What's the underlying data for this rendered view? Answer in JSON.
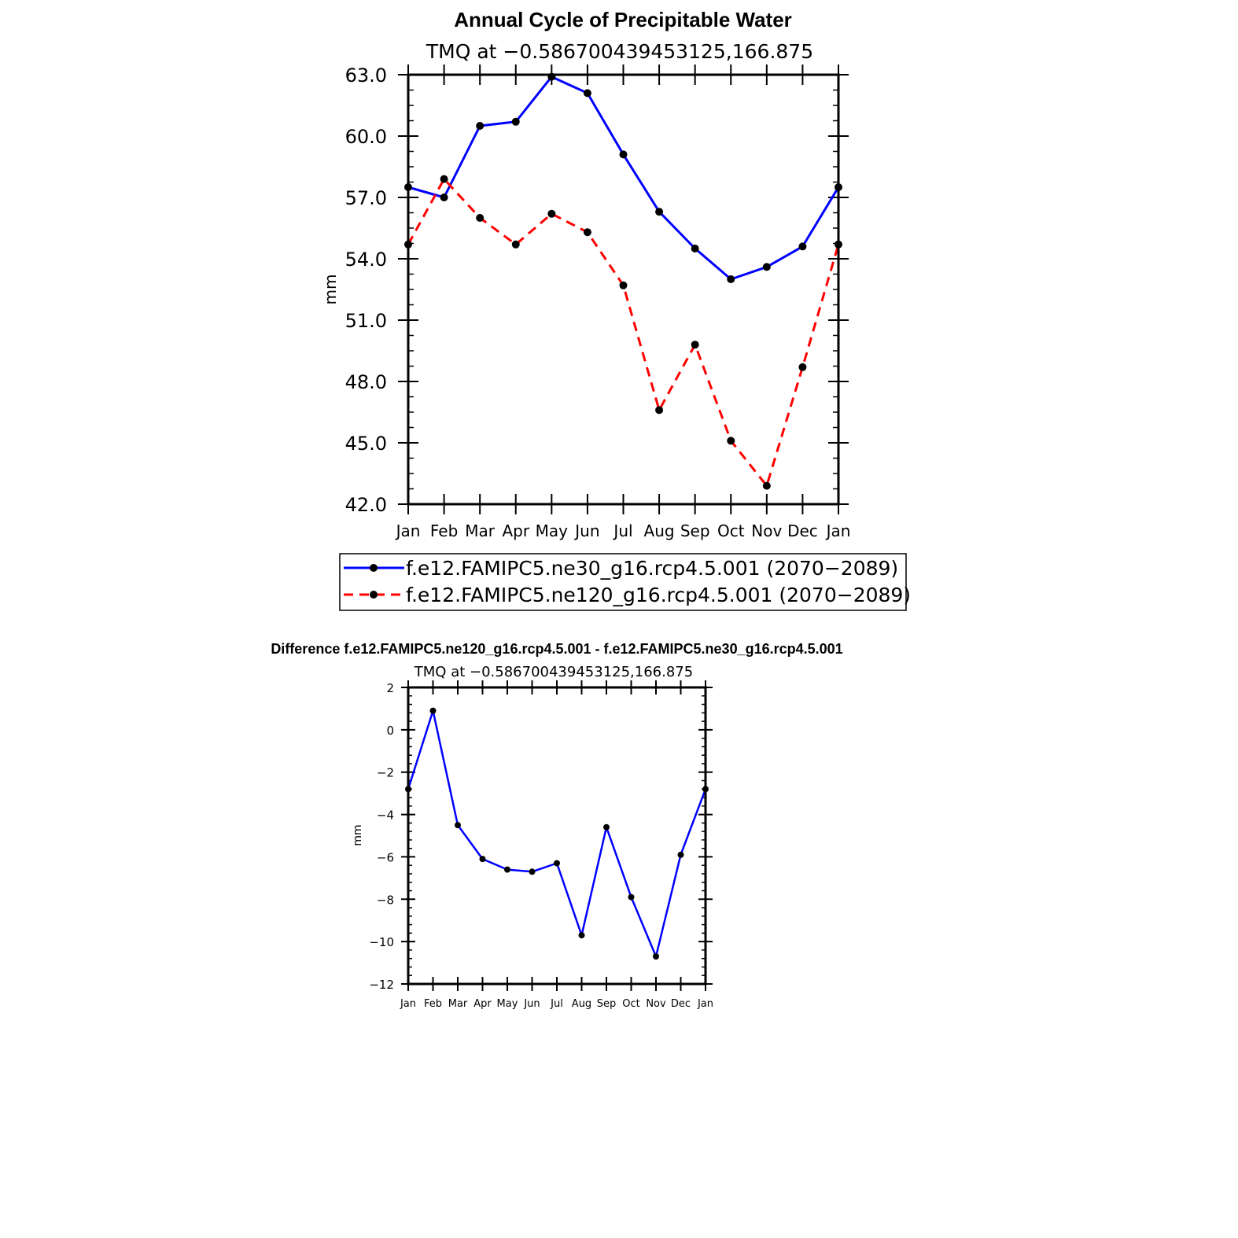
{
  "chart_data": [
    {
      "type": "line",
      "title": "Annual Cycle of Precipitable Water",
      "subtitle": "TMQ at −0.586700439453125,166.875",
      "xlabel": "",
      "ylabel": "mm",
      "categories": [
        "Jan",
        "Feb",
        "Mar",
        "Apr",
        "May",
        "Jun",
        "Jul",
        "Aug",
        "Sep",
        "Oct",
        "Nov",
        "Dec",
        "Jan"
      ],
      "ylim": [
        42.0,
        63.0
      ],
      "yticks": [
        "42.0",
        "45.0",
        "48.0",
        "51.0",
        "54.0",
        "57.0",
        "60.0",
        "63.0"
      ],
      "yticks_values": [
        42,
        45,
        48,
        51,
        54,
        57,
        60,
        63
      ],
      "series": [
        {
          "name": "f.e12.FAMIPC5.ne30_g16.rcp4.5.001 (2070−2089)",
          "color": "#0000ff",
          "dash": "solid",
          "values": [
            57.5,
            57.0,
            60.5,
            60.7,
            62.9,
            62.1,
            59.1,
            56.3,
            54.5,
            53.0,
            53.6,
            54.6,
            57.5
          ]
        },
        {
          "name": "f.e12.FAMIPC5.ne120_g16.rcp4.5.001 (2070−2089)",
          "color": "#ff0000",
          "dash": "dashed",
          "values": [
            54.7,
            57.9,
            56.0,
            54.7,
            56.2,
            55.3,
            52.7,
            46.6,
            49.8,
            45.1,
            42.9,
            48.7,
            54.7
          ]
        }
      ],
      "legend": "bottom"
    },
    {
      "type": "line",
      "title": "Difference f.e12.FAMIPC5.ne120_g16.rcp4.5.001 - f.e12.FAMIPC5.ne30_g16.rcp4.5.001",
      "subtitle": "TMQ at −0.586700439453125,166.875",
      "xlabel": "",
      "ylabel": "mm",
      "categories": [
        "Jan",
        "Feb",
        "Mar",
        "Apr",
        "May",
        "Jun",
        "Jul",
        "Aug",
        "Sep",
        "Oct",
        "Nov",
        "Dec",
        "Jan"
      ],
      "ylim": [
        -12,
        2
      ],
      "yticks": [
        "−12",
        "−10",
        "−8",
        "−6",
        "−4",
        "−2",
        "0",
        "2"
      ],
      "yticks_values": [
        -12,
        -10,
        -8,
        -6,
        -4,
        -2,
        0,
        2
      ],
      "series": [
        {
          "name": "difference",
          "color": "#0000ff",
          "dash": "solid",
          "values": [
            -2.8,
            0.9,
            -4.5,
            -6.1,
            -6.6,
            -6.7,
            -6.3,
            -9.7,
            -4.6,
            -7.9,
            -10.7,
            -5.9,
            -2.8
          ]
        }
      ]
    }
  ]
}
